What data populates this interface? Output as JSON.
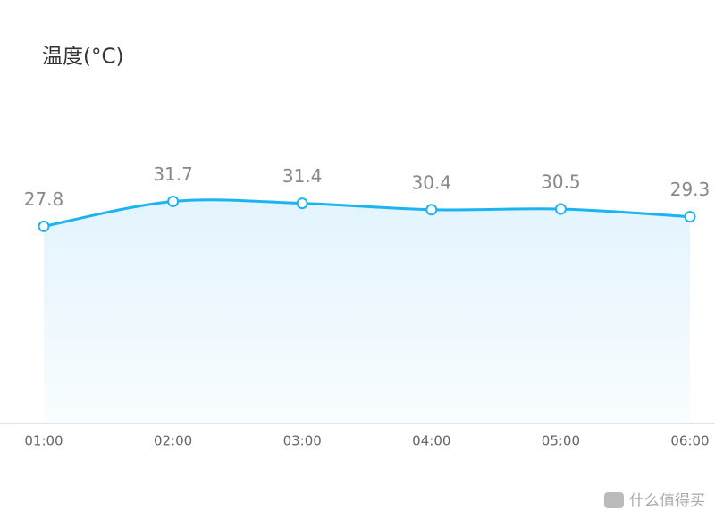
{
  "chart_data": {
    "type": "line",
    "title": "温度(°C)",
    "categories": [
      "01:00",
      "02:00",
      "03:00",
      "04:00",
      "05:00",
      "06:00"
    ],
    "series": [
      {
        "name": "温度",
        "color": "#1ab4f0",
        "values": [
          27.8,
          31.7,
          31.4,
          30.4,
          30.5,
          29.3
        ]
      }
    ],
    "ylim": [
      -3,
      40
    ],
    "smooth": true,
    "area": true
  },
  "watermark": "什么值得买"
}
